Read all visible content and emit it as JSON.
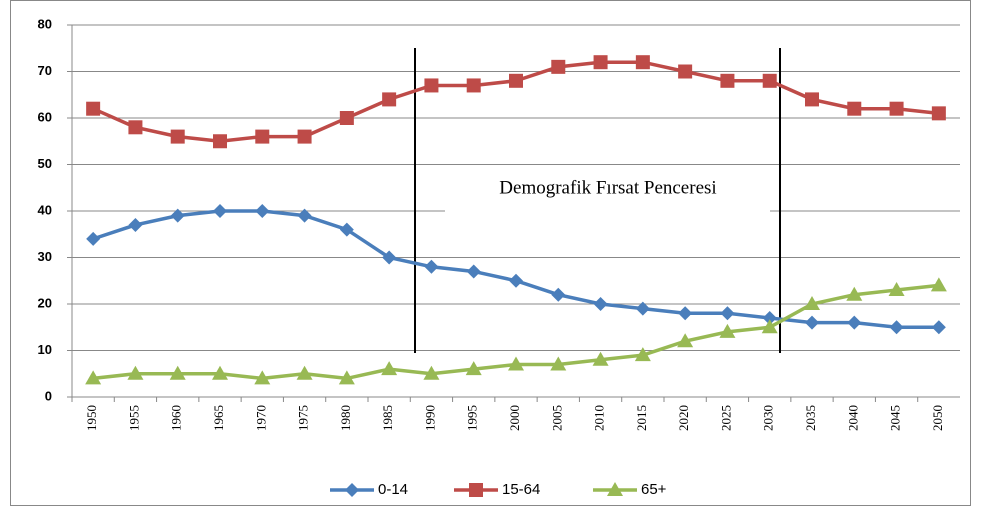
{
  "chart_data": {
    "type": "line",
    "annotation": "Demografik Fırsat Penceresi",
    "categories": [
      "1950",
      "1955",
      "1960",
      "1965",
      "1970",
      "1975",
      "1980",
      "1985",
      "1990",
      "1995",
      "2000",
      "2005",
      "2010",
      "2015",
      "2020",
      "2025",
      "2030",
      "2035",
      "2040",
      "2045",
      "2050"
    ],
    "series": [
      {
        "name": "0-14",
        "color": "#4a7ebb",
        "marker": "diamond",
        "values": [
          34,
          37,
          39,
          40,
          40,
          39,
          36,
          30,
          28,
          27,
          25,
          22,
          20,
          19,
          18,
          18,
          17,
          16,
          16,
          15,
          15
        ]
      },
      {
        "name": "15-64",
        "color": "#be4b48",
        "marker": "square",
        "values": [
          62,
          58,
          56,
          55,
          56,
          56,
          60,
          64,
          67,
          67,
          68,
          71,
          72,
          72,
          70,
          68,
          68,
          64,
          62,
          62,
          61
        ]
      },
      {
        "name": "65+",
        "color": "#98b954",
        "marker": "triangle",
        "values": [
          4,
          5,
          5,
          5,
          4,
          5,
          4,
          6,
          5,
          6,
          7,
          7,
          8,
          9,
          12,
          14,
          15,
          20,
          22,
          23,
          24
        ]
      }
    ],
    "ylim": [
      0,
      80
    ],
    "yticks": [
      0,
      10,
      20,
      30,
      40,
      50,
      60,
      70,
      80
    ],
    "grid": true,
    "legend": "bottom"
  }
}
